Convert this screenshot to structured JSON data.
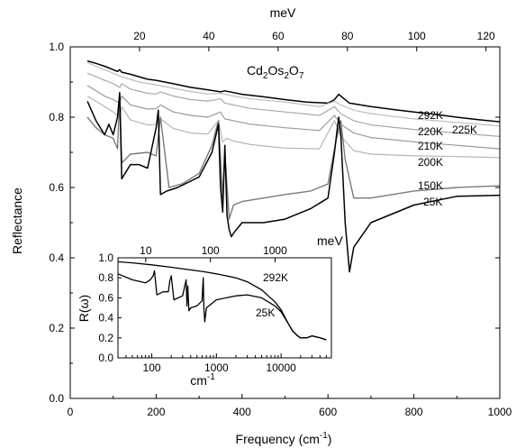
{
  "chart_data": {
    "type": "line",
    "title": "Cd2Os2O7",
    "title_sub": "2",
    "title_parts": [
      "Cd",
      "2",
      "Os",
      "2",
      "O",
      "7"
    ],
    "xlabel": "Frequency (cm-1)",
    "xlabel_main": "Frequency (cm",
    "xlabel_sup": "-1",
    "xlabel_close": ")",
    "ylabel": "Reflectance",
    "top_axis_label": "meV",
    "xlim": [
      0,
      1000
    ],
    "ylim": [
      0.0,
      1.0
    ],
    "x_ticks": [
      "0",
      "200",
      "400",
      "600",
      "800",
      "1000"
    ],
    "y_ticks": [
      "0.0",
      "0.2",
      "0.4",
      "0.6",
      "0.8",
      "1.0"
    ],
    "top_ticks": [
      "20",
      "40",
      "60",
      "80",
      "100",
      "120"
    ],
    "series": [
      {
        "name": "292K",
        "color": "#000000",
        "width": 1.5,
        "x": [
          40,
          60,
          80,
          100,
          110,
          115,
          120,
          140,
          160,
          180,
          200,
          240,
          280,
          320,
          350,
          360,
          380,
          400,
          450,
          500,
          550,
          600,
          615,
          625,
          635,
          650,
          700,
          750,
          800,
          850,
          900,
          950,
          1000
        ],
        "y": [
          0.96,
          0.953,
          0.945,
          0.935,
          0.93,
          0.935,
          0.928,
          0.922,
          0.915,
          0.908,
          0.905,
          0.895,
          0.885,
          0.878,
          0.872,
          0.875,
          0.87,
          0.865,
          0.858,
          0.85,
          0.843,
          0.84,
          0.85,
          0.865,
          0.855,
          0.84,
          0.83,
          0.822,
          0.815,
          0.808,
          0.8,
          0.793,
          0.787
        ]
      },
      {
        "name": "225K",
        "color": "#bdbdbd",
        "width": 1.2,
        "x": [
          40,
          60,
          80,
          100,
          120,
          160,
          200,
          240,
          280,
          320,
          350,
          380,
          420,
          500,
          580,
          615,
          630,
          660,
          700,
          800,
          900,
          1000
        ],
        "y": [
          0.955,
          0.945,
          0.935,
          0.925,
          0.915,
          0.9,
          0.892,
          0.882,
          0.873,
          0.866,
          0.868,
          0.86,
          0.852,
          0.843,
          0.83,
          0.845,
          0.835,
          0.82,
          0.81,
          0.795,
          0.785,
          0.775
        ]
      },
      {
        "name": "220K",
        "color": "#a8a8a8",
        "width": 1.2,
        "x": [
          40,
          60,
          80,
          100,
          115,
          120,
          140,
          180,
          200,
          210,
          240,
          280,
          320,
          350,
          360,
          380,
          420,
          500,
          580,
          615,
          630,
          660,
          700,
          800,
          900,
          1000
        ],
        "y": [
          0.925,
          0.915,
          0.905,
          0.895,
          0.885,
          0.895,
          0.88,
          0.868,
          0.866,
          0.872,
          0.86,
          0.85,
          0.846,
          0.852,
          0.84,
          0.835,
          0.825,
          0.815,
          0.805,
          0.83,
          0.81,
          0.79,
          0.778,
          0.765,
          0.755,
          0.745
        ]
      },
      {
        "name": "210K",
        "color": "#9a9a9a",
        "width": 1.2,
        "x": [
          40,
          60,
          80,
          100,
          115,
          120,
          140,
          180,
          200,
          210,
          240,
          280,
          320,
          350,
          360,
          380,
          420,
          500,
          580,
          615,
          630,
          660,
          700,
          800,
          900,
          1000
        ],
        "y": [
          0.89,
          0.875,
          0.86,
          0.85,
          0.84,
          0.86,
          0.835,
          0.823,
          0.824,
          0.835,
          0.815,
          0.805,
          0.8,
          0.815,
          0.795,
          0.79,
          0.78,
          0.77,
          0.762,
          0.805,
          0.78,
          0.755,
          0.742,
          0.73,
          0.72,
          0.71
        ]
      },
      {
        "name": "200K",
        "color": "#b5b5b5",
        "width": 1.2,
        "x": [
          40,
          60,
          80,
          100,
          115,
          120,
          140,
          180,
          200,
          210,
          240,
          280,
          320,
          345,
          355,
          365,
          380,
          420,
          500,
          580,
          615,
          630,
          660,
          700,
          800,
          900,
          1000
        ],
        "y": [
          0.86,
          0.845,
          0.83,
          0.815,
          0.8,
          0.83,
          0.792,
          0.778,
          0.78,
          0.795,
          0.768,
          0.755,
          0.752,
          0.79,
          0.73,
          0.74,
          0.732,
          0.722,
          0.712,
          0.71,
          0.79,
          0.745,
          0.705,
          0.695,
          0.69,
          0.688,
          0.685
        ]
      },
      {
        "name": "150K",
        "color": "#7a7a7a",
        "width": 1.4,
        "x": [
          40,
          60,
          80,
          100,
          110,
          115,
          120,
          140,
          180,
          200,
          210,
          230,
          260,
          300,
          330,
          345,
          355,
          360,
          370,
          380,
          400,
          450,
          500,
          560,
          600,
          620,
          630,
          640,
          660,
          700,
          800,
          900,
          1000
        ],
        "y": [
          0.8,
          0.77,
          0.75,
          0.74,
          0.71,
          0.86,
          0.67,
          0.695,
          0.7,
          0.69,
          0.8,
          0.6,
          0.61,
          0.64,
          0.72,
          0.79,
          0.57,
          0.7,
          0.51,
          0.55,
          0.56,
          0.57,
          0.58,
          0.59,
          0.61,
          0.74,
          0.79,
          0.68,
          0.57,
          0.57,
          0.59,
          0.6,
          0.605
        ]
      },
      {
        "name": "25K",
        "color": "#000000",
        "width": 1.5,
        "x": [
          40,
          60,
          80,
          90,
          100,
          110,
          115,
          120,
          140,
          160,
          180,
          200,
          205,
          210,
          225,
          250,
          300,
          330,
          345,
          350,
          355,
          360,
          365,
          370,
          375,
          380,
          400,
          450,
          500,
          560,
          600,
          615,
          625,
          630,
          640,
          650,
          660,
          700,
          800,
          900,
          1000
        ],
        "y": [
          0.845,
          0.79,
          0.75,
          0.78,
          0.75,
          0.8,
          0.87,
          0.625,
          0.665,
          0.665,
          0.655,
          0.77,
          0.82,
          0.58,
          0.59,
          0.6,
          0.63,
          0.7,
          0.78,
          0.6,
          0.53,
          0.72,
          0.52,
          0.48,
          0.46,
          0.47,
          0.5,
          0.5,
          0.51,
          0.54,
          0.57,
          0.7,
          0.8,
          0.75,
          0.5,
          0.36,
          0.43,
          0.5,
          0.55,
          0.575,
          0.578
        ]
      }
    ],
    "inset": {
      "type": "line",
      "xscale": "log",
      "xlim": [
        30,
        60000
      ],
      "ylim": [
        0.0,
        1.0
      ],
      "xlabel": "cm-1",
      "xlabel_main": "cm",
      "xlabel_sup": "-1",
      "ylabel": "R(ω)",
      "top_axis_label": "meV",
      "x_ticks": [
        "100",
        "1000",
        "10000"
      ],
      "y_ticks": [
        "0.0",
        "0.2",
        "0.4",
        "0.6",
        "0.8",
        "1.0"
      ],
      "top_ticks": [
        "10",
        "100",
        "1000"
      ],
      "series": [
        {
          "name": "292K",
          "color": "#000000",
          "width": 1.3,
          "x": [
            30,
            50,
            100,
            200,
            500,
            650,
            1000,
            2000,
            3000,
            5000,
            8000,
            10000,
            13000,
            15000,
            18000,
            20000,
            25000,
            30000,
            40000,
            50000
          ],
          "y": [
            0.96,
            0.95,
            0.93,
            0.905,
            0.87,
            0.86,
            0.84,
            0.8,
            0.76,
            0.68,
            0.56,
            0.48,
            0.34,
            0.27,
            0.22,
            0.2,
            0.2,
            0.22,
            0.2,
            0.18
          ]
        },
        {
          "name": "25K",
          "color": "#000000",
          "width": 1.3,
          "x": [
            30,
            50,
            80,
            95,
            105,
            110,
            120,
            150,
            180,
            190,
            200,
            220,
            300,
            340,
            350,
            360,
            375,
            400,
            500,
            600,
            615,
            625,
            640,
            660,
            700,
            1000,
            2000,
            3000,
            5000,
            8000,
            10000,
            13000,
            15000,
            18000,
            20000,
            25000,
            30000,
            40000,
            50000
          ],
          "y": [
            0.84,
            0.78,
            0.75,
            0.78,
            0.82,
            0.87,
            0.63,
            0.66,
            0.66,
            0.77,
            0.82,
            0.58,
            0.62,
            0.78,
            0.52,
            0.72,
            0.47,
            0.5,
            0.52,
            0.57,
            0.72,
            0.8,
            0.5,
            0.36,
            0.5,
            0.58,
            0.62,
            0.63,
            0.6,
            0.52,
            0.46,
            0.34,
            0.27,
            0.22,
            0.2,
            0.2,
            0.22,
            0.2,
            0.18
          ]
        }
      ]
    }
  }
}
